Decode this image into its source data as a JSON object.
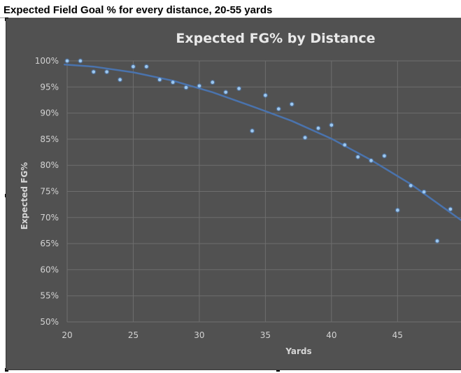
{
  "sheet_title": "Expected Field Goal % for every distance, 20-55 yards",
  "chart_data": {
    "type": "scatter",
    "title": "Expected FG% by Distance",
    "xlabel": "Yards",
    "ylabel": "Expected FG%",
    "xlim": [
      20,
      49.8
    ],
    "ylim": [
      50,
      100
    ],
    "x_ticks": [
      20,
      25,
      30,
      35,
      40,
      45
    ],
    "x_tick_labels": [
      "20",
      "25",
      "30",
      "35",
      "40",
      "45"
    ],
    "y_ticks": [
      50,
      55,
      60,
      65,
      70,
      75,
      80,
      85,
      90,
      95,
      100
    ],
    "y_tick_labels": [
      "50%",
      "55%",
      "60%",
      "65%",
      "70%",
      "75%",
      "80%",
      "85%",
      "90%",
      "95%",
      "100%"
    ],
    "grid": true,
    "legend": "none",
    "series": [
      {
        "points": [
          {
            "x": 20,
            "y": 100
          },
          {
            "x": 21,
            "y": 100
          },
          {
            "x": 22,
            "y": 97.9
          },
          {
            "x": 23,
            "y": 97.9
          },
          {
            "x": 24,
            "y": 96.4
          },
          {
            "x": 25,
            "y": 98.9
          },
          {
            "x": 26,
            "y": 98.9
          },
          {
            "x": 27,
            "y": 96.4
          },
          {
            "x": 28,
            "y": 95.9
          },
          {
            "x": 29,
            "y": 94.9
          },
          {
            "x": 30,
            "y": 95.2
          },
          {
            "x": 31,
            "y": 95.9
          },
          {
            "x": 32,
            "y": 94.0
          },
          {
            "x": 33,
            "y": 94.7
          },
          {
            "x": 34,
            "y": 86.6
          },
          {
            "x": 35,
            "y": 93.4
          },
          {
            "x": 36,
            "y": 90.8
          },
          {
            "x": 37,
            "y": 91.7
          },
          {
            "x": 38,
            "y": 85.3
          },
          {
            "x": 39,
            "y": 87.1
          },
          {
            "x": 40,
            "y": 87.7
          },
          {
            "x": 41,
            "y": 83.9
          },
          {
            "x": 42,
            "y": 81.6
          },
          {
            "x": 43,
            "y": 80.9
          },
          {
            "x": 44,
            "y": 81.8
          },
          {
            "x": 45,
            "y": 71.4
          },
          {
            "x": 46,
            "y": 76.1
          },
          {
            "x": 47,
            "y": 74.9
          },
          {
            "x": 48,
            "y": 65.5
          },
          {
            "x": 49,
            "y": 71.6
          }
        ]
      }
    ],
    "trendline": {
      "type": "polynomial-2",
      "x": [
        19.8,
        22,
        25,
        28,
        31,
        34,
        37,
        40,
        43,
        46,
        49.8
      ],
      "y": [
        99.3,
        98.9,
        97.8,
        96.2,
        94.0,
        91.3,
        88.5,
        85.1,
        81.0,
        76.4,
        69.5
      ]
    },
    "colors": {
      "background": "#515151",
      "gridline": "#6e6e6e",
      "marker": "#9cc8f0",
      "marker_edge": "#4f7fbf",
      "trendline": "#4a73ad",
      "text": "#d2d2d2"
    }
  }
}
